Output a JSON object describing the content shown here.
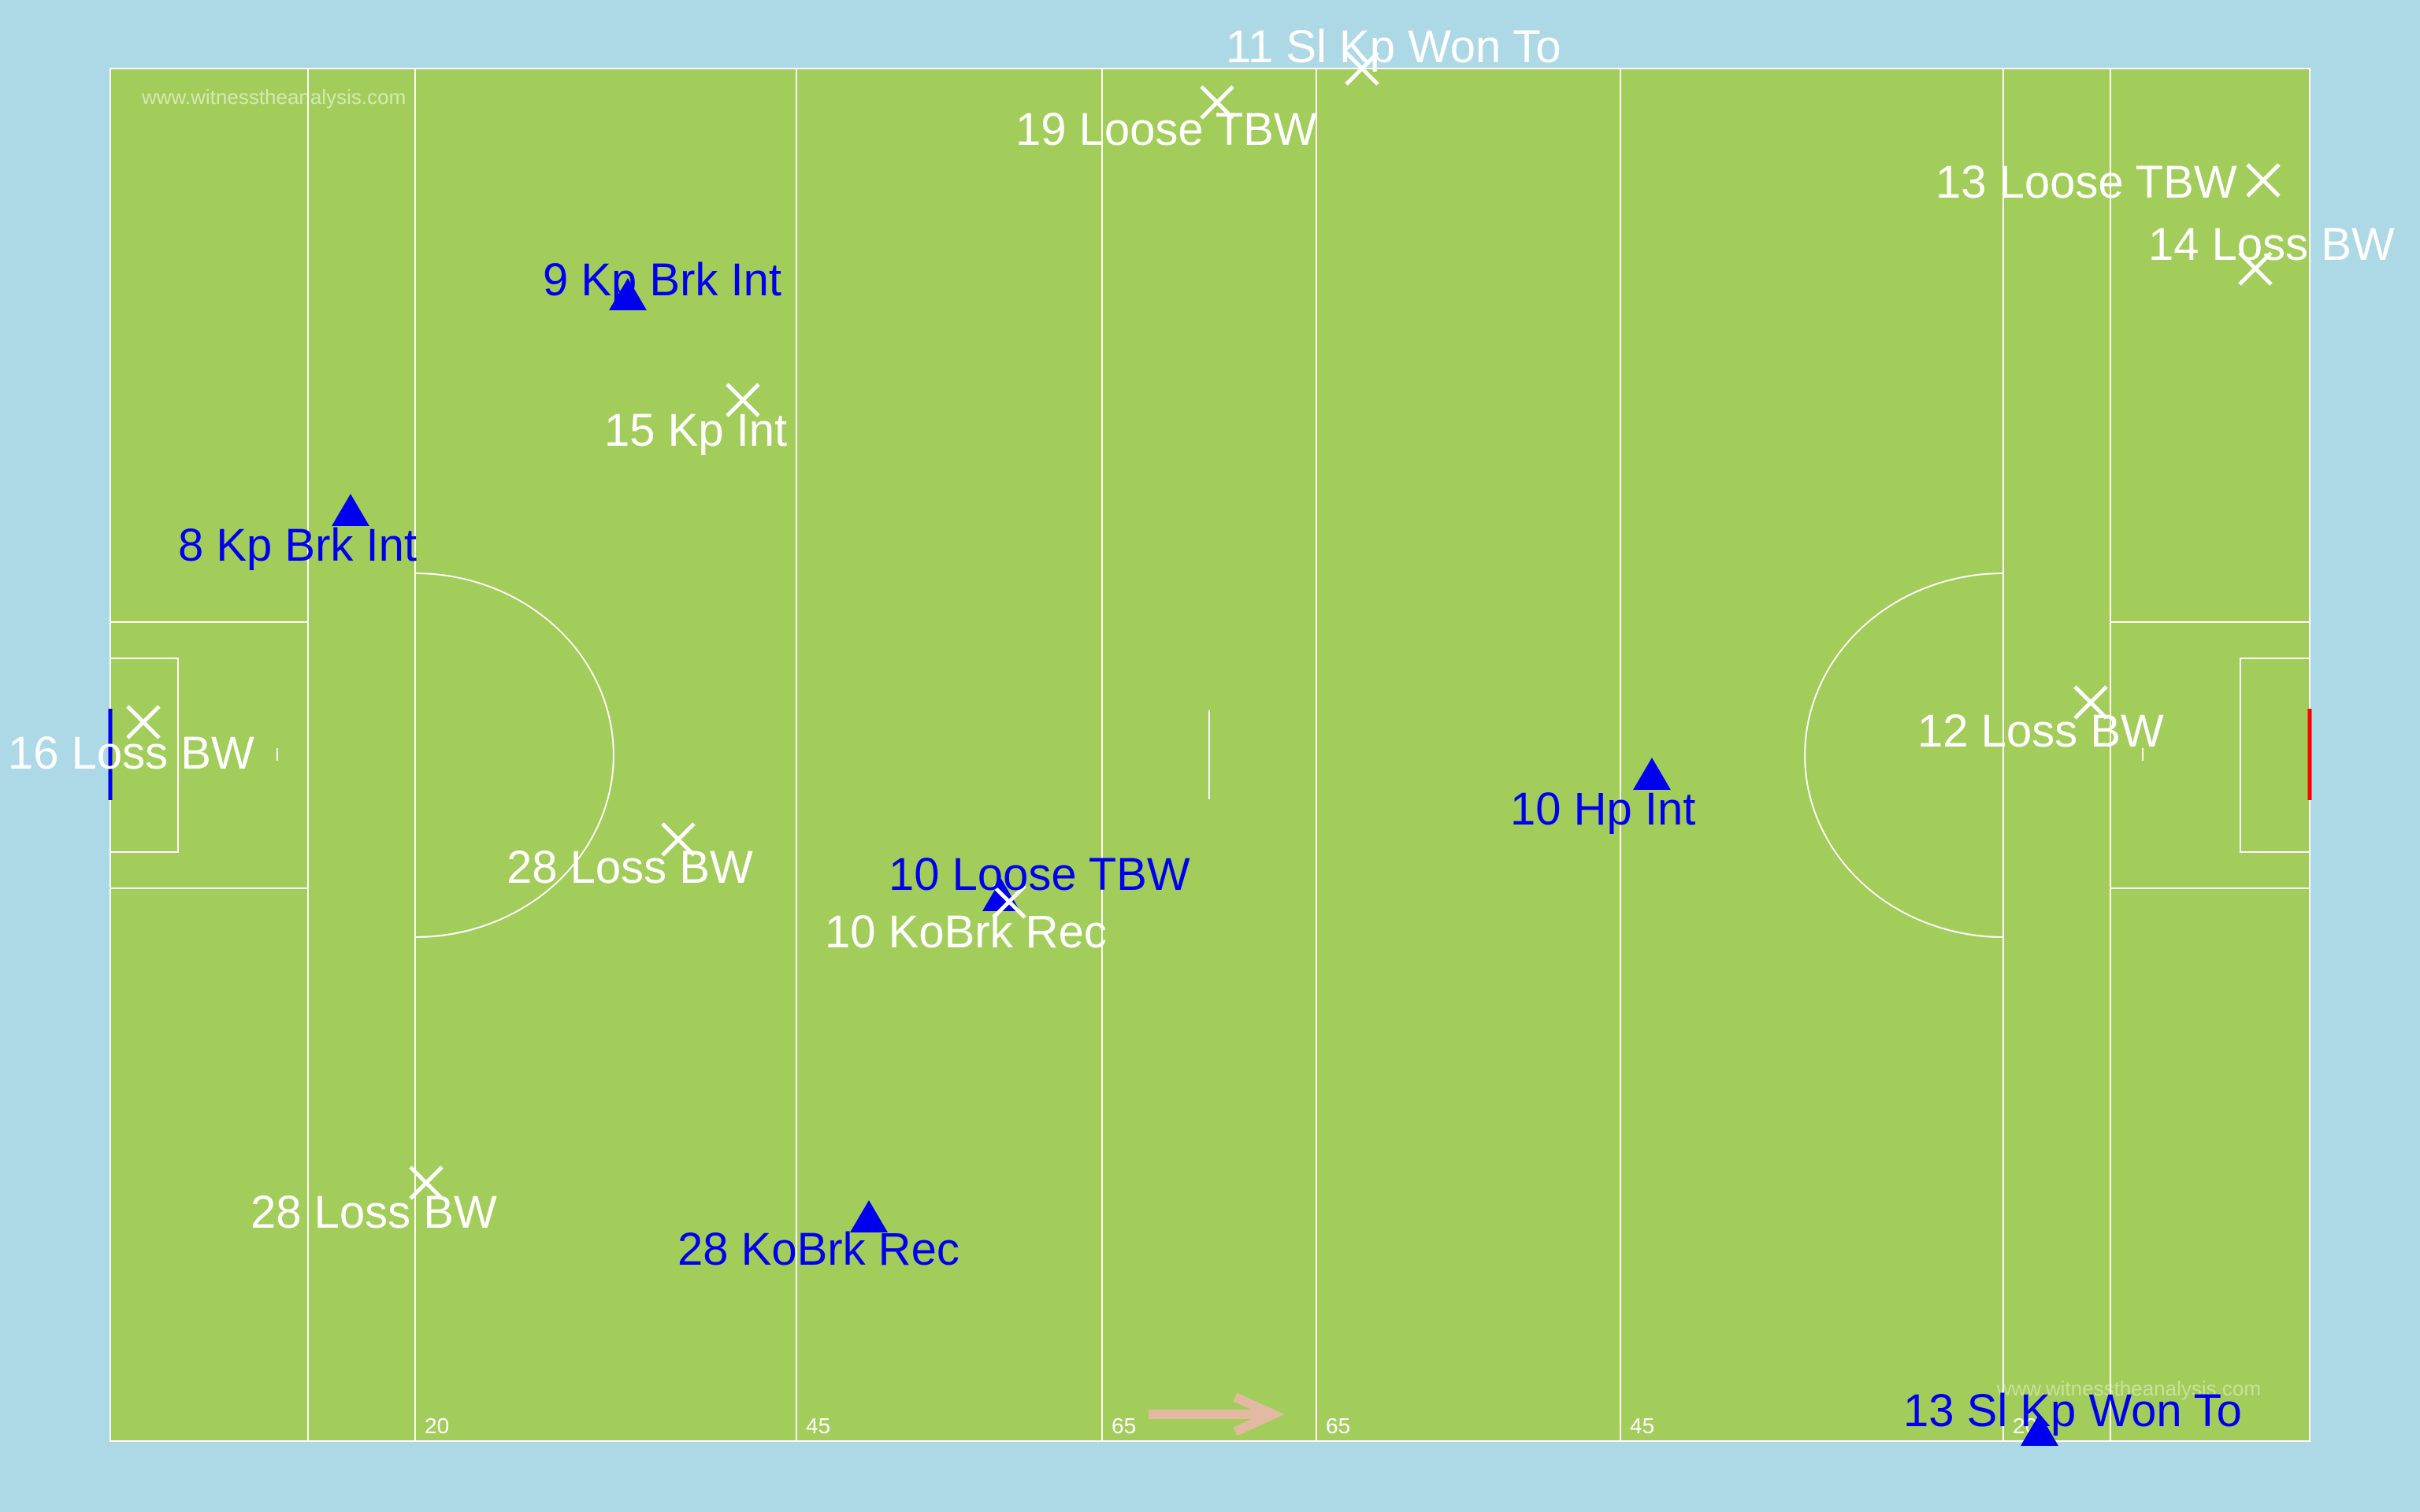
{
  "watermarks": {
    "top": "www.witnesstheanalysis.com",
    "bottom": "www.witnesstheanalysis.com"
  },
  "colors": {
    "background": "#add8e6",
    "pitch": "#a2cd5a",
    "lines": "#ffffff",
    "team_a": "#0000ee",
    "team_b": "#ffffff",
    "direction_arrow": "#e4b9a3",
    "left_goal": "#0000ee",
    "right_goal": "#ff0000"
  },
  "line_labels": [
    "20",
    "45",
    "65",
    "65",
    "45",
    "20"
  ],
  "events": [
    {
      "label": "11 Sl Kp Won To",
      "marker": "cross"
    },
    {
      "label": "19 Loose TBW",
      "marker": "cross"
    },
    {
      "label": "13 Loose TBW",
      "marker": "cross"
    },
    {
      "label": "14 Loss BW",
      "marker": "cross"
    },
    {
      "label": "9 Kp Brk Int",
      "marker": "triangle"
    },
    {
      "label": "15 Kp Int",
      "marker": "cross"
    },
    {
      "label": "8 Kp Brk Int",
      "marker": "triangle"
    },
    {
      "label": "16 Loss BW",
      "marker": "cross"
    },
    {
      "label": "12 Loss BW",
      "marker": "cross"
    },
    {
      "label": "10 Hp Int",
      "marker": "triangle"
    },
    {
      "label": "28 Loss BW",
      "marker": "cross"
    },
    {
      "label": "10 Loose TBW",
      "marker": "triangle"
    },
    {
      "label": "10 KoBrk Rec",
      "marker": "cross"
    },
    {
      "label": "28 Loss BW",
      "marker": "cross"
    },
    {
      "label": "28 KoBrk Rec",
      "marker": "triangle"
    },
    {
      "label": "13 Sl Kp Won To",
      "marker": "triangle"
    }
  ]
}
